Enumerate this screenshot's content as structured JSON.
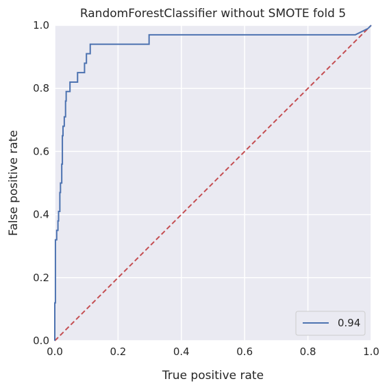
{
  "chart_data": {
    "type": "line",
    "title": "RandomForestClassifier without SMOTE fold 5",
    "xlabel": "True positive rate",
    "ylabel": "False positive rate",
    "xlim": [
      0,
      1
    ],
    "ylim": [
      0,
      1
    ],
    "xticks": [
      "0.0",
      "0.2",
      "0.4",
      "0.6",
      "0.8",
      "1.0"
    ],
    "yticks": [
      "0.0",
      "0.2",
      "0.4",
      "0.6",
      "0.8",
      "1.0"
    ],
    "grid": true,
    "legend_position": "lower-right",
    "series": [
      {
        "name": "0.94",
        "color": "#4c72b0",
        "style": "solid",
        "points": [
          [
            0.0,
            0.0
          ],
          [
            0.0,
            0.12
          ],
          [
            0.002,
            0.12
          ],
          [
            0.002,
            0.32
          ],
          [
            0.006,
            0.32
          ],
          [
            0.006,
            0.35
          ],
          [
            0.01,
            0.35
          ],
          [
            0.01,
            0.38
          ],
          [
            0.012,
            0.38
          ],
          [
            0.012,
            0.41
          ],
          [
            0.016,
            0.41
          ],
          [
            0.016,
            0.47
          ],
          [
            0.018,
            0.47
          ],
          [
            0.018,
            0.5
          ],
          [
            0.022,
            0.5
          ],
          [
            0.022,
            0.56
          ],
          [
            0.024,
            0.56
          ],
          [
            0.024,
            0.65
          ],
          [
            0.026,
            0.65
          ],
          [
            0.026,
            0.68
          ],
          [
            0.03,
            0.68
          ],
          [
            0.03,
            0.71
          ],
          [
            0.034,
            0.71
          ],
          [
            0.034,
            0.76
          ],
          [
            0.036,
            0.76
          ],
          [
            0.036,
            0.79
          ],
          [
            0.048,
            0.79
          ],
          [
            0.048,
            0.82
          ],
          [
            0.072,
            0.82
          ],
          [
            0.072,
            0.85
          ],
          [
            0.094,
            0.85
          ],
          [
            0.094,
            0.88
          ],
          [
            0.1,
            0.88
          ],
          [
            0.1,
            0.91
          ],
          [
            0.112,
            0.91
          ],
          [
            0.112,
            0.94
          ],
          [
            0.298,
            0.94
          ],
          [
            0.298,
            0.97
          ],
          [
            0.95,
            0.97
          ],
          [
            0.99,
            0.99
          ],
          [
            1.0,
            1.0
          ]
        ]
      },
      {
        "name": "",
        "color": "#c44e52",
        "style": "dashed",
        "points": [
          [
            0,
            0
          ],
          [
            1,
            1
          ]
        ]
      }
    ]
  }
}
